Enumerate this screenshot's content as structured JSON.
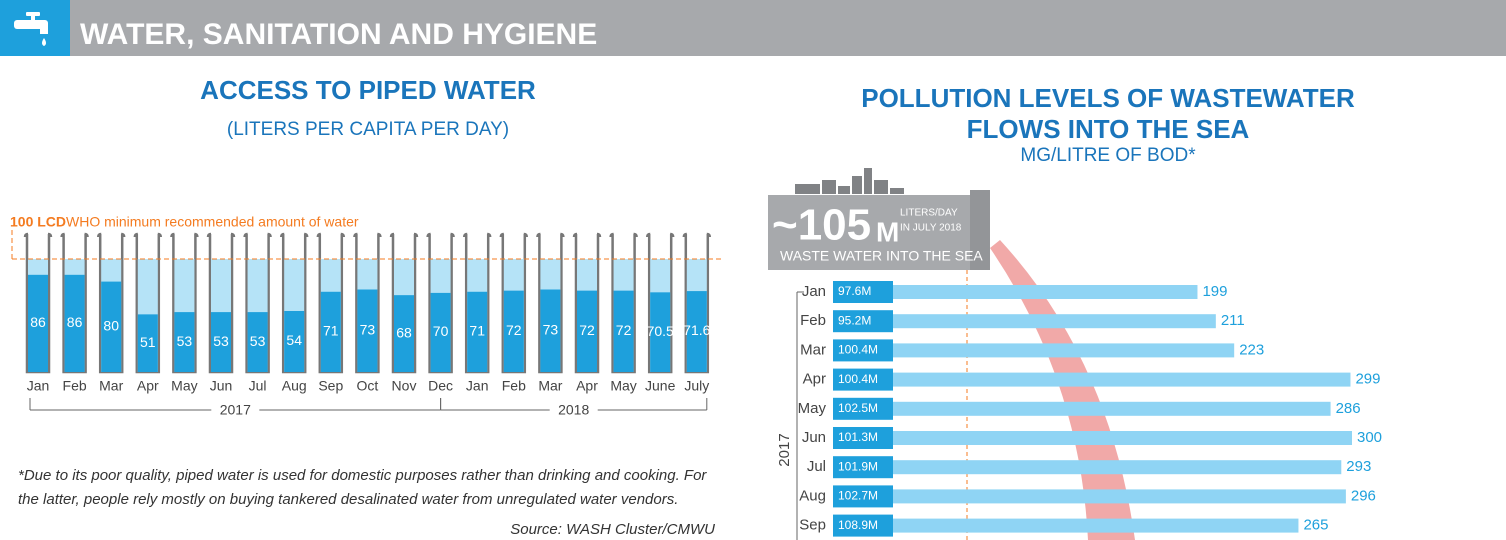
{
  "header": {
    "title": "WATER, SANITATION AND HYGIENE"
  },
  "chart_data": [
    {
      "type": "tube",
      "title": "ACCESS TO PIPED WATER",
      "subtitle": "(LITERS PER CAPITA PER DAY)",
      "categories": [
        "Jan",
        "Feb",
        "Mar",
        "Apr",
        "May",
        "Jun",
        "Jul",
        "Aug",
        "Sep",
        "Oct",
        "Nov",
        "Dec",
        "Jan",
        "Feb",
        "Mar",
        "Apr",
        "May",
        "June",
        "July"
      ],
      "values": [
        86,
        86,
        80,
        51,
        53,
        53,
        53,
        54,
        71,
        73,
        68,
        70,
        71,
        72,
        73,
        72,
        72,
        70.5,
        71.6
      ],
      "groups": [
        "2017",
        "2018"
      ],
      "ylim": [
        0,
        100
      ],
      "color": "#1ea0dc",
      "track_color": "#b5e3f7",
      "reference": {
        "value": 100,
        "label": "100 LCD",
        "text": "WHO minimum recommended amount of water",
        "color": "#f47b20"
      },
      "note": [
        "*Due to its poor quality, piped water is used for domestic purposes rather than drinking and cooking. For",
        "the latter, people rely mostly on buying tankered desalinated water from unregulated water vendors."
      ],
      "source": "Source: WASH Cluster/CMWU"
    },
    {
      "type": "hbar",
      "title": [
        "POLLUTION LEVELS OF WASTEWATER",
        "FLOWS INTO THE SEA"
      ],
      "subtitle": "MG/LITRE OF BOD*",
      "categories": [
        "Jan",
        "Feb",
        "Mar",
        "Apr",
        "May",
        "Jun",
        "Jul",
        "Aug",
        "Sep"
      ],
      "values": [
        199,
        211,
        223,
        299,
        286,
        300,
        293,
        296,
        265
      ],
      "flow_labels": [
        "97.6M",
        "95.2M",
        "100.4M",
        "100.4M",
        "102.5M",
        "101.3M",
        "101.9M",
        "102.7M",
        "108.9M"
      ],
      "group": "2017",
      "xlim": [
        0,
        350
      ],
      "color": "#8fd4f4",
      "label_color": "#1ea0dc",
      "callout": {
        "value": "~105",
        "unit": "M",
        "line1": "LITERS/DAY",
        "line2": "IN JULY 2018",
        "caption": "WASTE WATER INTO THE SEA"
      }
    }
  ]
}
